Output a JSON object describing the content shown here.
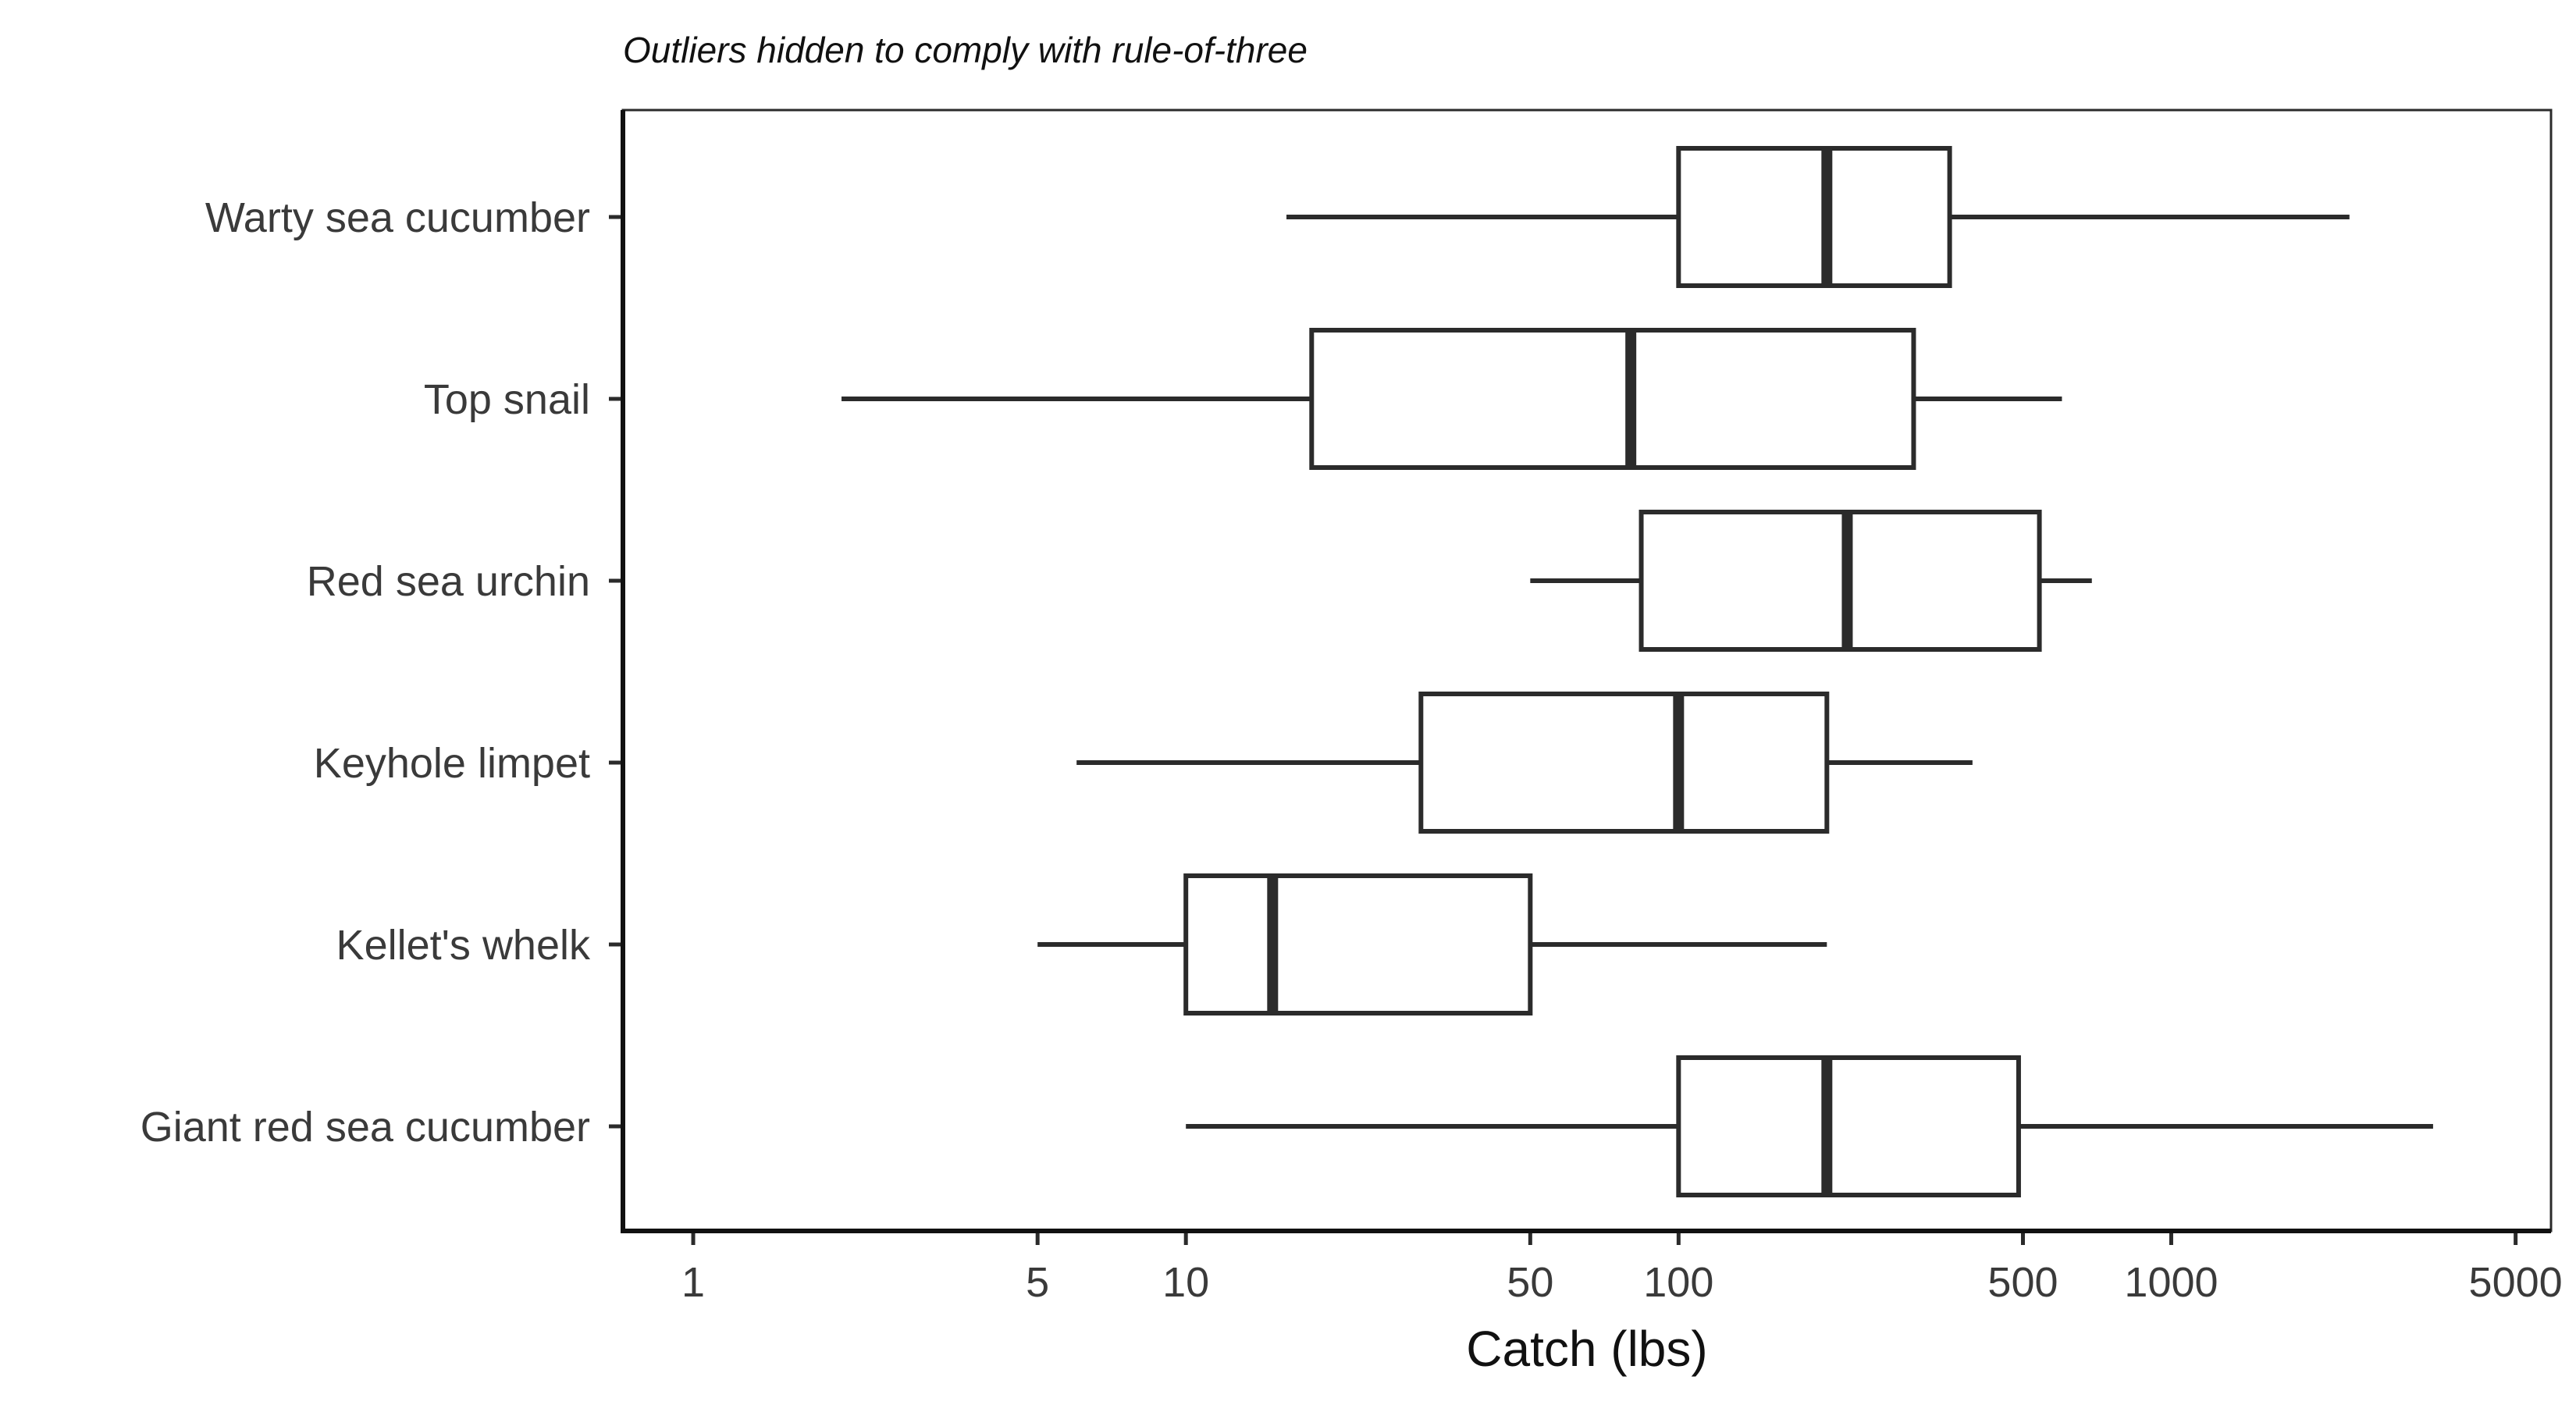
{
  "chart_data": {
    "type": "boxplot",
    "orientation": "horizontal",
    "subtitle": "Outliers hidden to comply with rule-of-three",
    "xlabel": "Catch (lbs)",
    "ylabel": "",
    "xscale": "log10",
    "xlim": [
      0.72,
      5900
    ],
    "xticks": [
      1,
      5,
      10,
      50,
      100,
      500,
      1000,
      5000
    ],
    "xtick_labels": [
      "1",
      "5",
      "10",
      "50",
      "100",
      "500",
      "1000",
      "5000"
    ],
    "grid": false,
    "legend": "none",
    "categories": [
      "Warty sea cucumber",
      "Top snail",
      "Red sea urchin",
      "Keyhole limpet",
      "Kellet's whelk",
      "Giant red sea cucumber"
    ],
    "boxes": [
      {
        "category": "Warty sea cucumber",
        "whisker_low": 16,
        "q1": 100,
        "median": 200,
        "q3": 355,
        "whisker_high": 2300
      },
      {
        "category": "Top snail",
        "whisker_low": 2,
        "q1": 18,
        "median": 80,
        "q3": 300,
        "whisker_high": 600
      },
      {
        "category": "Red sea urchin",
        "whisker_low": 50,
        "q1": 84,
        "median": 220,
        "q3": 540,
        "whisker_high": 690
      },
      {
        "category": "Keyhole limpet",
        "whisker_low": 6,
        "q1": 30,
        "median": 100,
        "q3": 200,
        "whisker_high": 395
      },
      {
        "category": "Kellet's whelk",
        "whisker_low": 5,
        "q1": 10,
        "median": 15,
        "q3": 50,
        "whisker_high": 200
      },
      {
        "category": "Giant red sea cucumber",
        "whisker_low": 10,
        "q1": 100,
        "median": 200,
        "q3": 490,
        "whisker_high": 3400
      }
    ],
    "colors": {
      "stroke": "#2b2b2b",
      "fill": "#ffffff",
      "text": "#3a3a3a"
    }
  }
}
